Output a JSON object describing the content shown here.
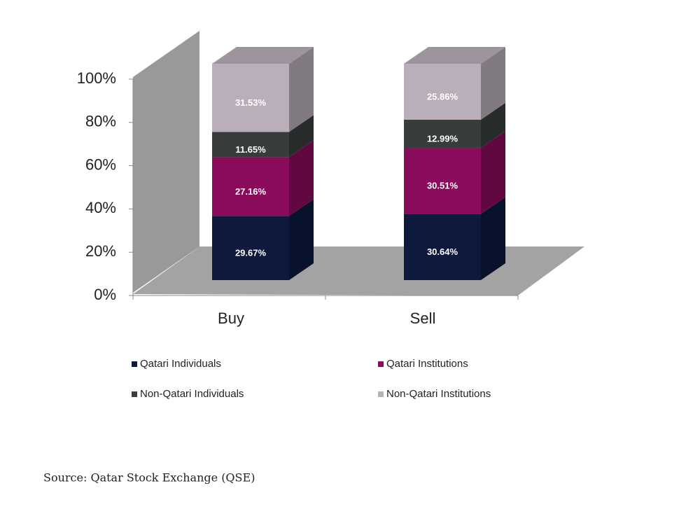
{
  "chart_data": {
    "type": "bar3d_stacked",
    "categories": [
      "Buy",
      "Sell"
    ],
    "series": [
      {
        "name": "Qatari Individuals",
        "color": "#0d1a3d",
        "values": [
          29.67,
          30.64
        ],
        "value_labels": [
          "29.67%",
          "30.64%"
        ]
      },
      {
        "name": "Qatari Institutions",
        "color": "#8a0b5b",
        "values": [
          27.16,
          30.51
        ],
        "value_labels": [
          "27.16%",
          "30.51%"
        ]
      },
      {
        "name": "Non-Qatari Individuals",
        "color": "#383d3c",
        "values": [
          11.65,
          12.99
        ],
        "value_labels": [
          "11.65%",
          "12.99%"
        ]
      },
      {
        "name": "Non-Qatari Institutions",
        "color": "#b9aeb9",
        "values": [
          31.53,
          25.86
        ],
        "value_labels": [
          "31.53%",
          "25.86%"
        ]
      }
    ],
    "ylim": [
      0,
      100
    ],
    "yticks": [
      {
        "value": 0,
        "label": "0%"
      },
      {
        "value": 20,
        "label": "20%"
      },
      {
        "value": 40,
        "label": "40%"
      },
      {
        "value": 60,
        "label": "60%"
      },
      {
        "value": 80,
        "label": "80%"
      },
      {
        "value": 100,
        "label": "100%"
      }
    ],
    "source": "Source: Qatar Stock Exchange (QSE)"
  }
}
